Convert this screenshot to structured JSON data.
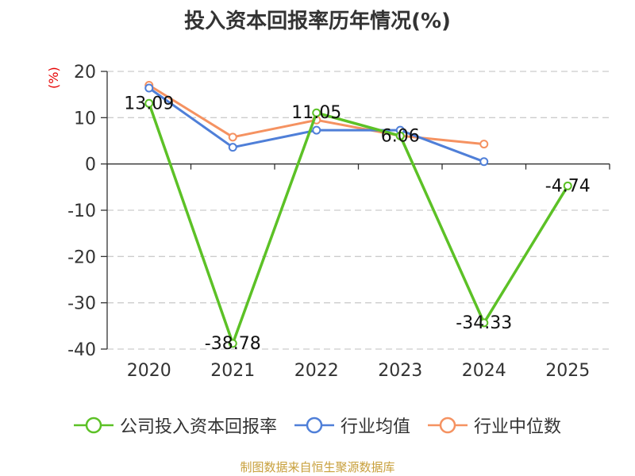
{
  "title": "投入资本回报率历年情况(%)",
  "unit_label": "(%)",
  "source": "制图数据来自恒生聚源数据库",
  "colors": {
    "company": "#5cc126",
    "industry_avg": "#4f7fd8",
    "industry_median": "#f59261",
    "grid": "#cccccc",
    "axis": "#333333",
    "unit": "#e60000",
    "source": "#c8a03c"
  },
  "chart_data": {
    "type": "line",
    "title": "投入资本回报率历年情况(%)",
    "ylabel": "(%)",
    "xlabel": "",
    "categories": [
      "2020",
      "2021",
      "2022",
      "2023",
      "2024",
      "2025"
    ],
    "ylim": [
      -40,
      20
    ],
    "yticks": [
      "20",
      "10",
      "0",
      "-10",
      "-20",
      "-30",
      "-40"
    ],
    "grid": "horizontal dashed",
    "legend_position": "bottom",
    "series": [
      {
        "name": "公司投入资本回报率",
        "values": [
          13.09,
          -38.78,
          11.05,
          6.06,
          -34.33,
          -4.74
        ],
        "labels": [
          "13.09",
          "-38.78",
          "11.05",
          "6.06",
          "-34.33",
          "-4.74"
        ],
        "color": "#5cc126"
      },
      {
        "name": "行业均值",
        "values": [
          16.4,
          3.6,
          7.3,
          7.3,
          0.5,
          null
        ],
        "color": "#4f7fd8"
      },
      {
        "name": "行业中位数",
        "values": [
          17.0,
          5.8,
          9.5,
          6.1,
          4.3,
          null
        ],
        "color": "#f59261"
      }
    ]
  }
}
